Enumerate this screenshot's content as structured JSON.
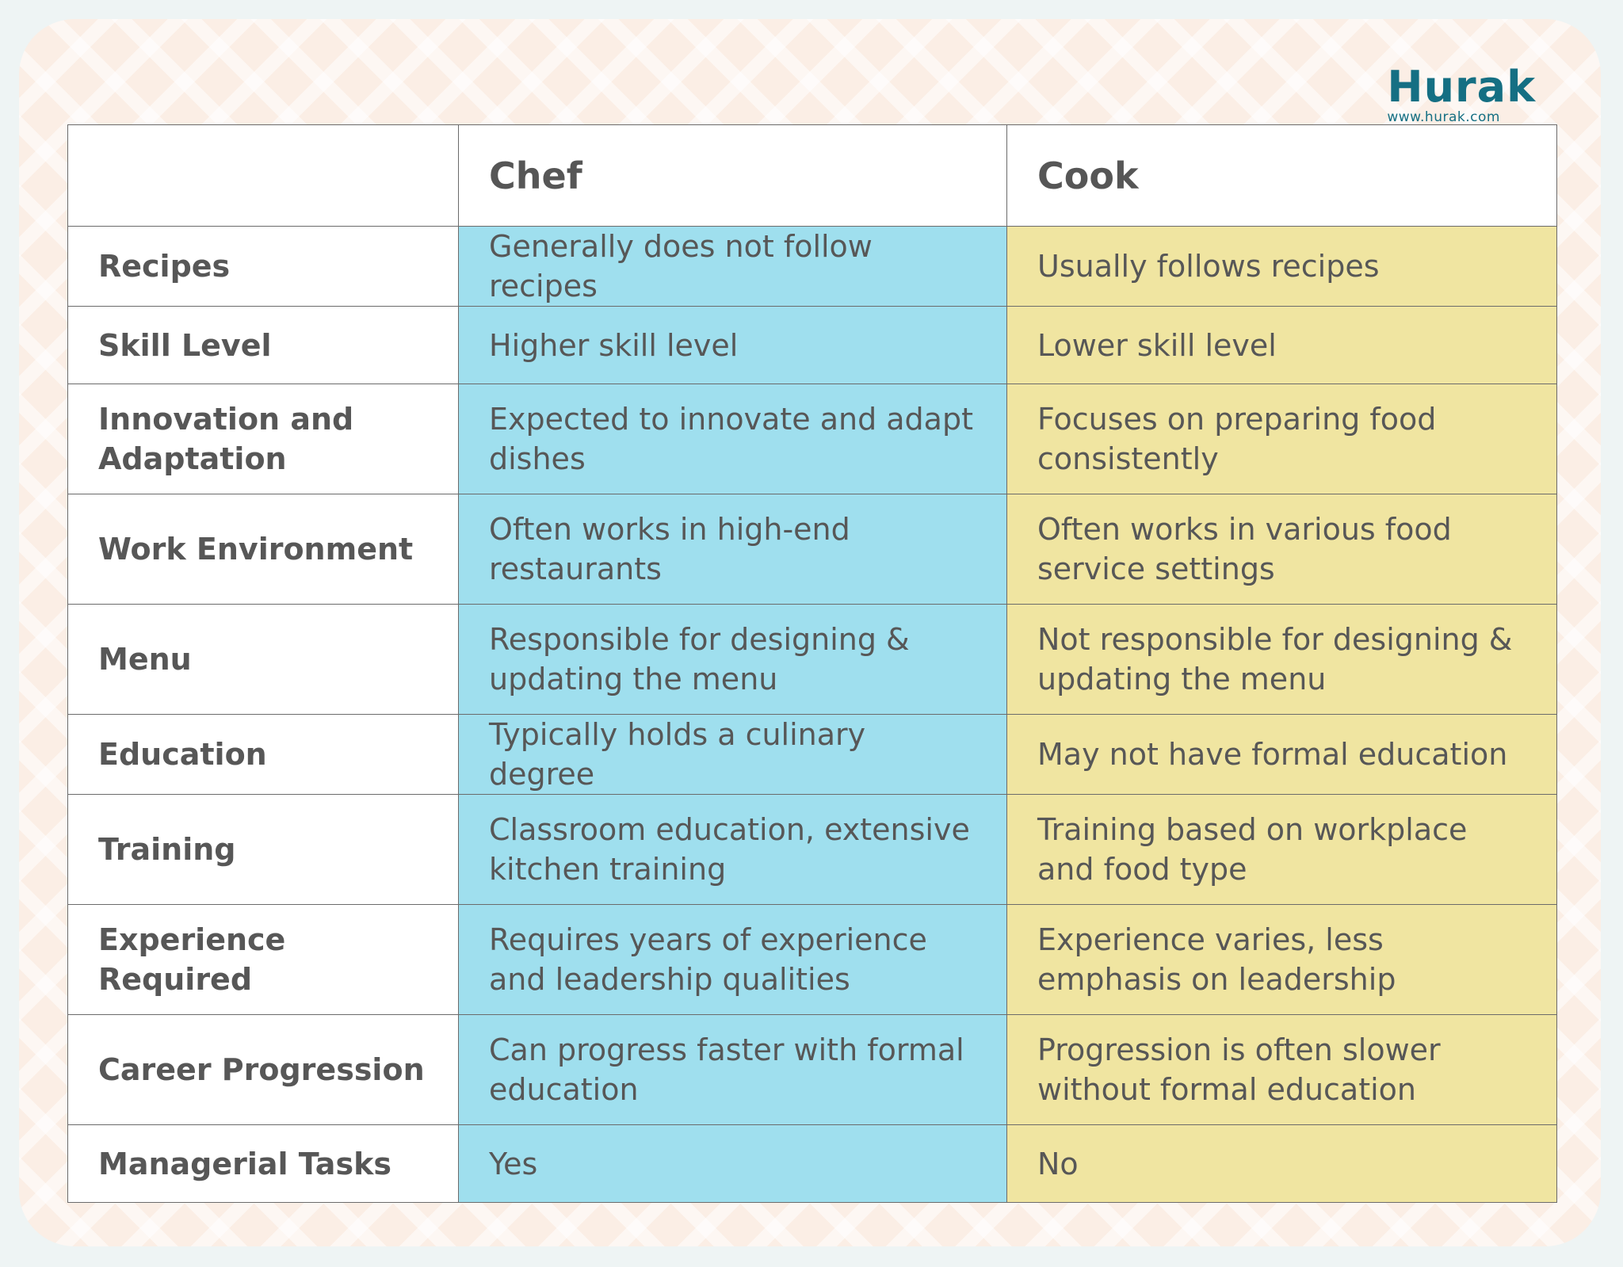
{
  "brand": {
    "name": "Hurak",
    "url": "www.hurak.com",
    "color": "#156f83"
  },
  "table": {
    "corner_label": "",
    "headers": [
      "Chef",
      "Cook"
    ],
    "colors": {
      "chef_column": "#9fdfee",
      "cook_column": "#f0e5a1",
      "label_column": "#ffffff"
    },
    "rows": [
      {
        "label": "Recipes",
        "chef": "Generally does not follow recipes",
        "cook": "Usually follows recipes"
      },
      {
        "label": "Skill Level",
        "chef": "Higher skill level",
        "cook": "Lower skill level"
      },
      {
        "label": "Innovation and Adaptation",
        "chef": "Expected to innovate and adapt dishes",
        "cook": "Focuses on preparing food consistently"
      },
      {
        "label": "Work Environment",
        "chef": "Often works in high-end restaurants",
        "cook": "Often works in various food service settings"
      },
      {
        "label": "Menu",
        "chef": "Responsible for designing & updating the menu",
        "cook": "Not responsible for designing & updating the menu"
      },
      {
        "label": "Education",
        "chef": "Typically holds a culinary degree",
        "cook": "May not have formal education"
      },
      {
        "label": "Training",
        "chef": "Classroom education, extensive kitchen training",
        "cook": "Training based on workplace and food type"
      },
      {
        "label": "Experience Required",
        "chef": "Requires years of experience and leadership qualities",
        "cook": "Experience varies, less emphasis on leadership"
      },
      {
        "label": "Career Progression",
        "chef": "Can progress faster with formal education",
        "cook": "Progression is often slower without formal education"
      },
      {
        "label": "Managerial Tasks",
        "chef": "Yes",
        "cook": "No"
      }
    ]
  }
}
